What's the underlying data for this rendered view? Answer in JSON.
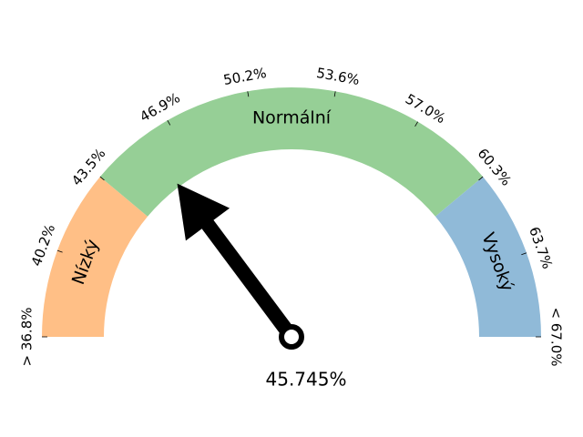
{
  "chart_data": {
    "type": "gauge",
    "range": [
      36.8,
      67.0
    ],
    "value": 45.745,
    "value_label": "45.745%",
    "zones": [
      {
        "label": "Nízký",
        "from": 36.8,
        "to": 43.5,
        "color": "#ffbf86"
      },
      {
        "label": "Normální",
        "from": 43.5,
        "to": 60.3,
        "color": "#96cf96"
      },
      {
        "label": "Vysoký",
        "from": 60.3,
        "to": 67.0,
        "color": "#90bad8"
      }
    ],
    "ticks": [
      {
        "value": 36.8,
        "label": "> 36.8%"
      },
      {
        "value": 40.2,
        "label": "40.2%"
      },
      {
        "value": 43.5,
        "label": "43.5%"
      },
      {
        "value": 46.9,
        "label": "46.9%"
      },
      {
        "value": 50.2,
        "label": "50.2%"
      },
      {
        "value": 53.6,
        "label": "53.6%"
      },
      {
        "value": 57.0,
        "label": "57.0%"
      },
      {
        "value": 60.3,
        "label": "60.3%"
      },
      {
        "value": 63.7,
        "label": "63.7%"
      },
      {
        "value": 67.0,
        "label": "< 67.0%"
      }
    ],
    "needle_color": "#000000"
  }
}
